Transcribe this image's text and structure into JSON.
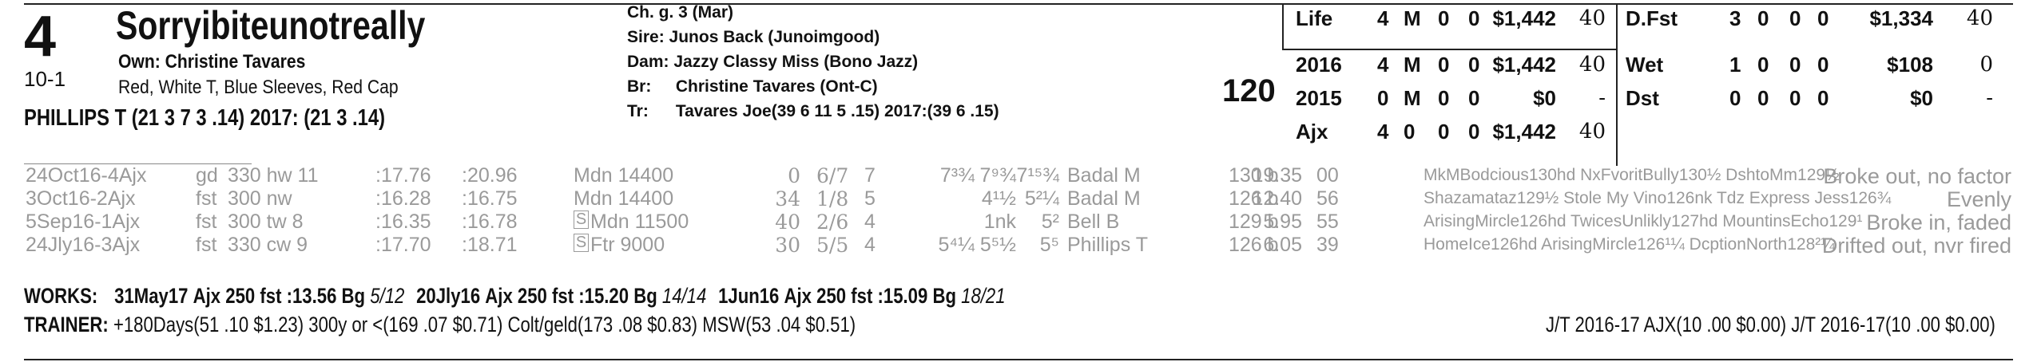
{
  "horse": {
    "program_number": "4",
    "name": "Sorryibiteunotreally",
    "morning_line": "10-1",
    "owner": "Own: Christine Tavares",
    "silks": "Red, White T, Blue Sleeves, Red Cap",
    "jockey": "PHILLIPS T (21 3 7 3 .14) 2017: (21 3 .14)"
  },
  "pedigree": {
    "sex_age": "Ch. g. 3 (Mar)",
    "sire_label": "Sire:",
    "sire": "Junos Back (Junoimgood)",
    "dam_label": "Dam:",
    "dam": "Jazzy Classy Miss (Bono Jazz)",
    "breeder_label": "Br:",
    "breeder": "Christine Tavares (Ont-C)",
    "trainer_label": "Tr:",
    "trainer": "Tavares Joe(39 6 11 5 .15) 2017:(39 6 .15)"
  },
  "weight": "120",
  "records": [
    {
      "label": "Life",
      "s": "4",
      "w": "M",
      "p": "0",
      "h": "0",
      "earn": "$1,442",
      "fig": "40"
    },
    {
      "label": "2016",
      "s": "4",
      "w": "M",
      "p": "0",
      "h": "0",
      "earn": "$1,442",
      "fig": "40"
    },
    {
      "label": "2015",
      "s": "0",
      "w": "M",
      "p": "0",
      "h": "0",
      "earn": "$0",
      "fig": "-"
    },
    {
      "label": "Ajx",
      "s": "4",
      "w": "0",
      "p": "0",
      "h": "0",
      "earn": "$1,442",
      "fig": "40"
    }
  ],
  "surface_records": [
    {
      "label": "D.Fst",
      "s": "3",
      "w": "0",
      "p": "0",
      "h": "0",
      "earn": "$1,334",
      "fig": "40"
    },
    {
      "label": "Wet",
      "s": "1",
      "w": "0",
      "p": "0",
      "h": "0",
      "earn": "$108",
      "fig": "0"
    },
    {
      "label": "Dst",
      "s": "0",
      "w": "0",
      "p": "0",
      "h": "0",
      "earn": "$0",
      "fig": "-"
    }
  ],
  "past_performances": [
    {
      "date": "24Oct16-4Ajx",
      "cond": "gd",
      "dist": "330 hw 11",
      "f1": ":17.76",
      "f2": ":20.96",
      "race": "Mdn 14400",
      "sfig": "0",
      "post": "6/7",
      "st": "7",
      "c1": "7³¾",
      "c2": "7⁹¾",
      "fin": "7¹⁵¾",
      "jock": "Badal M",
      "wt": "130 b",
      "odds": "19.35",
      "sp": "00",
      "comment_line": "MkMBodcious130hd NxFvoritBully130½ DshtoMm129½",
      "remark": "Broke out, no factor"
    },
    {
      "date": "3Oct16-2Ajx",
      "cond": "fst",
      "dist": "300 nw",
      "f1": ":16.28",
      "f2": ":16.75",
      "race": "Mdn 14400",
      "sfig": "34",
      "post": "1/8",
      "st": "5",
      "c1": "",
      "c2": "4¹½",
      "fin": "5²¼",
      "jock": "Badal M",
      "wt": "126 b",
      "odds": "12.40",
      "sp": "56",
      "comment_line": "Shazamataz129½ Stole My Vino126nk Tdz Express Jess126¾",
      "remark": "Evenly"
    },
    {
      "date": "5Sep16-1Ajx",
      "cond": "fst",
      "dist": "300 tw 8",
      "f1": ":16.35",
      "f2": ":16.78",
      "race": "Mdn 11500",
      "sfig": "40",
      "post": "2/6",
      "st": "4",
      "c1": "",
      "c2": "1nk",
      "fin": "5²",
      "jock": "Bell B",
      "wt": "129 b",
      "odds": "5.95",
      "sp": "55",
      "comment_line": "ArisingMircle126hd TwicesUnlikly127hd MountinsEcho129¹",
      "remark": "Broke in, faded"
    },
    {
      "date": "24Jly16-3Ajx",
      "cond": "fst",
      "dist": "330 cw 9",
      "f1": ":17.70",
      "f2": ":18.71",
      "race": "Ftr 9000",
      "sfig": "30",
      "post": "5/5",
      "st": "4",
      "c1": "5⁴¼",
      "c2": "5⁵½",
      "fin": "5⁵",
      "jock": "Phillips T",
      "wt": "126 b",
      "odds": "6.05",
      "sp": "39",
      "comment_line": "HomeIce126hd ArisingMircle126¹¼ DcptionNorth128²¼",
      "remark": "Drifted out, nvr fired"
    }
  ],
  "works": {
    "label": "WORKS:",
    "items": [
      {
        "date": "31May17",
        "track": "Ajx",
        "dist": "250",
        "cond": "fst",
        "time": ":13.56",
        "grade": "Bg",
        "rank": "5/12"
      },
      {
        "date": "20Jly16",
        "track": "Ajx",
        "dist": "250",
        "cond": "fst",
        "time": ":15.20",
        "grade": "Bg",
        "rank": "14/14"
      },
      {
        "date": "1Jun16",
        "track": "Ajx",
        "dist": "250",
        "cond": "fst",
        "time": ":15.09",
        "grade": "Bg",
        "rank": "18/21"
      }
    ]
  },
  "trainer_stats": {
    "label": "TRAINER:",
    "text": "+180Days(51 .10 $1.23) 300y or <(169 .07 $0.71) Colt/geld(173 .08 $0.83) MSW(53 .04 $0.51)",
    "jt": "J/T 2016-17 AJX(10 .00 $0.00)  J/T 2016-17(10 .00 $0.00)"
  }
}
